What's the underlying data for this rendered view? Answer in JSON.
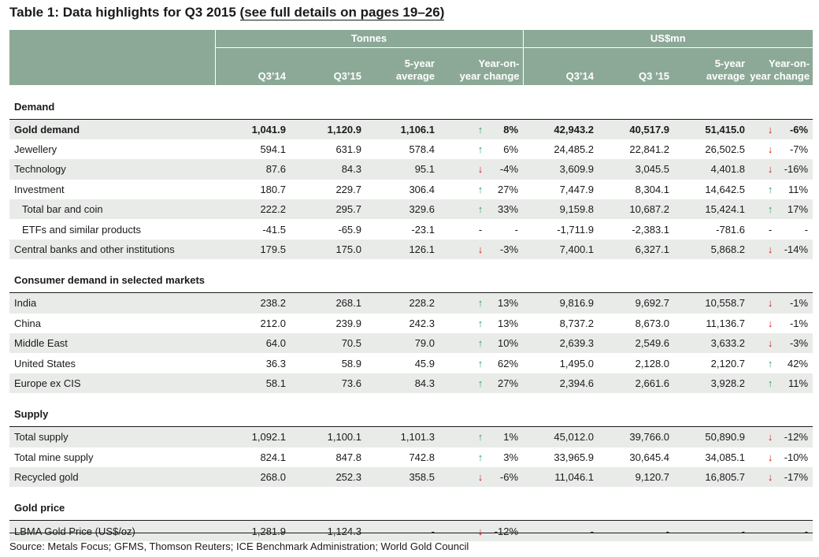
{
  "title": {
    "main": "Table 1: Data highlights for Q3 2015 ",
    "link": "(see full details on pages 19–26)"
  },
  "header": {
    "group_tonnes": "Tonnes",
    "group_usd": "US$mn",
    "cols": [
      "Q3’14",
      "Q3’15",
      "5-year average",
      "Year-on-year change",
      "Q3’14",
      "Q3 ’15",
      "5-year average",
      "Year-on-year change"
    ],
    "cols_line1": [
      "",
      "",
      "5-year",
      "Year-on-",
      "",
      "",
      "5-year",
      "Year-on-"
    ],
    "cols_line2": [
      "Q3’14",
      "Q3’15",
      "average",
      "year change",
      "Q3’14",
      "Q3 ’15",
      "average",
      "year change"
    ]
  },
  "sections": [
    {
      "name": "Demand",
      "rows": [
        {
          "label": "Gold demand",
          "bold": true,
          "shaded": true,
          "t": [
            "1,041.9",
            "1,120.9",
            "1,106.1"
          ],
          "t_dir": "up",
          "t_chg": "8%",
          "u": [
            "42,943.2",
            "40,517.9",
            "51,415.0"
          ],
          "u_dir": "down",
          "u_chg": "-6%"
        },
        {
          "label": "Jewellery",
          "t": [
            "594.1",
            "631.9",
            "578.4"
          ],
          "t_dir": "up",
          "t_chg": "6%",
          "u": [
            "24,485.2",
            "22,841.2",
            "26,502.5"
          ],
          "u_dir": "down",
          "u_chg": "-7%"
        },
        {
          "label": "Technology",
          "shaded": true,
          "t": [
            "87.6",
            "84.3",
            "95.1"
          ],
          "t_dir": "down",
          "t_chg": "-4%",
          "u": [
            "3,609.9",
            "3,045.5",
            "4,401.8"
          ],
          "u_dir": "down",
          "u_chg": "-16%"
        },
        {
          "label": "Investment",
          "t": [
            "180.7",
            "229.7",
            "306.4"
          ],
          "t_dir": "up",
          "t_chg": "27%",
          "u": [
            "7,447.9",
            "8,304.1",
            "14,642.5"
          ],
          "u_dir": "up",
          "u_chg": "11%"
        },
        {
          "label": "Total bar and coin",
          "indent": true,
          "shaded": true,
          "t": [
            "222.2",
            "295.7",
            "329.6"
          ],
          "t_dir": "up",
          "t_chg": "33%",
          "u": [
            "9,159.8",
            "10,687.2",
            "15,424.1"
          ],
          "u_dir": "up",
          "u_chg": "17%"
        },
        {
          "label": "ETFs and similar products",
          "indent": true,
          "t": [
            "-41.5",
            "-65.9",
            "-23.1"
          ],
          "t_dir": "dash",
          "t_chg": "-",
          "u": [
            "-1,711.9",
            "-2,383.1",
            "-781.6"
          ],
          "u_dir": "dash",
          "u_chg": "-"
        },
        {
          "label": "Central banks and other institutions",
          "shaded": true,
          "t": [
            "179.5",
            "175.0",
            "126.1"
          ],
          "t_dir": "down",
          "t_chg": "-3%",
          "u": [
            "7,400.1",
            "6,327.1",
            "5,868.2"
          ],
          "u_dir": "down",
          "u_chg": "-14%"
        }
      ]
    },
    {
      "name": "Consumer demand in selected markets",
      "rows": [
        {
          "label": "India",
          "shaded": true,
          "t": [
            "238.2",
            "268.1",
            "228.2"
          ],
          "t_dir": "up",
          "t_chg": "13%",
          "u": [
            "9,816.9",
            "9,692.7",
            "10,558.7"
          ],
          "u_dir": "down",
          "u_chg": "-1%"
        },
        {
          "label": "China",
          "t": [
            "212.0",
            "239.9",
            "242.3"
          ],
          "t_dir": "up",
          "t_chg": "13%",
          "u": [
            "8,737.2",
            "8,673.0",
            "11,136.7"
          ],
          "u_dir": "down",
          "u_chg": "-1%"
        },
        {
          "label": "Middle East",
          "shaded": true,
          "t": [
            "64.0",
            "70.5",
            "79.0"
          ],
          "t_dir": "up",
          "t_chg": "10%",
          "u": [
            "2,639.3",
            "2,549.6",
            "3,633.2"
          ],
          "u_dir": "down",
          "u_chg": "-3%"
        },
        {
          "label": "United States",
          "t": [
            "36.3",
            "58.9",
            "45.9"
          ],
          "t_dir": "up",
          "t_chg": "62%",
          "u": [
            "1,495.0",
            "2,128.0",
            "2,120.7"
          ],
          "u_dir": "up",
          "u_chg": "42%"
        },
        {
          "label": "Europe ex CIS",
          "shaded": true,
          "t": [
            "58.1",
            "73.6",
            "84.3"
          ],
          "t_dir": "up",
          "t_chg": "27%",
          "u": [
            "2,394.6",
            "2,661.6",
            "3,928.2"
          ],
          "u_dir": "up",
          "u_chg": "11%"
        }
      ]
    },
    {
      "name": "Supply",
      "rows": [
        {
          "label": "Total supply",
          "shaded": true,
          "t": [
            "1,092.1",
            "1,100.1",
            "1,101.3"
          ],
          "t_dir": "up",
          "t_chg": "1%",
          "u": [
            "45,012.0",
            "39,766.0",
            "50,890.9"
          ],
          "u_dir": "down",
          "u_chg": "-12%"
        },
        {
          "label": "Total mine supply",
          "t": [
            "824.1",
            "847.8",
            "742.8"
          ],
          "t_dir": "up",
          "t_chg": "3%",
          "u": [
            "33,965.9",
            "30,645.4",
            "34,085.1"
          ],
          "u_dir": "down",
          "u_chg": "-10%"
        },
        {
          "label": "Recycled gold",
          "shaded": true,
          "t": [
            "268.0",
            "252.3",
            "358.5"
          ],
          "t_dir": "down",
          "t_chg": "-6%",
          "u": [
            "11,046.1",
            "9,120.7",
            "16,805.7"
          ],
          "u_dir": "down",
          "u_chg": "-17%"
        }
      ]
    },
    {
      "name": "Gold price",
      "rows": [
        {
          "label": "LBMA Gold Price (US$/oz)",
          "shaded": true,
          "t": [
            "1,281.9",
            "1,124.3",
            "-"
          ],
          "t_dir": "down",
          "t_chg": "-12%",
          "u": [
            "-",
            "-",
            "-"
          ],
          "u_dir": "none",
          "u_chg": "-"
        }
      ]
    }
  ],
  "source": "Source: Metals Focus; GFMS, Thomson Reuters; ICE Benchmark Administration; World Gold Council",
  "colors": {
    "header_bg": "#8ca997",
    "row_shade": "#e9ebe9",
    "up": "#2ca25f",
    "down": "#d7191c"
  },
  "icons": {
    "up": "up-arrow-icon",
    "down": "down-arrow-icon"
  }
}
